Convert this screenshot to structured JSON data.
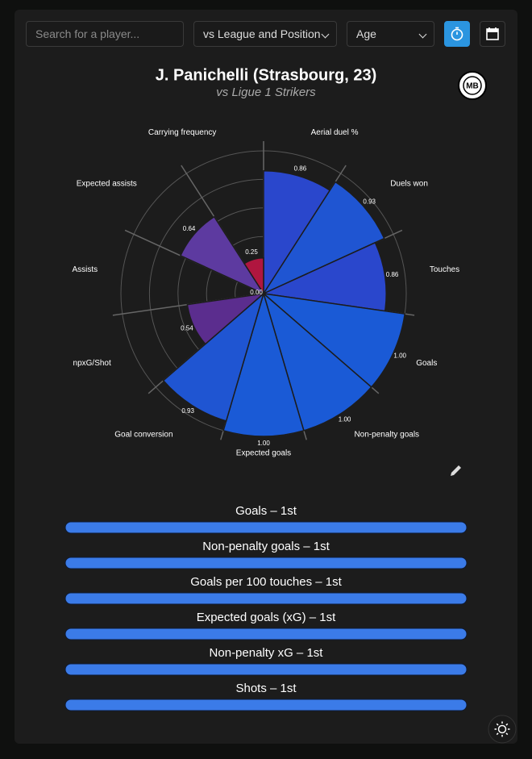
{
  "toolbar": {
    "search_placeholder": "Search for a player...",
    "comparison": "vs League and Position",
    "filter": "Age"
  },
  "header": {
    "title": "J. Panichelli (Strasbourg, 23)",
    "subtitle": "vs Ligue 1 Strikers",
    "logo": "MB"
  },
  "chart_data": {
    "type": "polar-bar",
    "categories": [
      "Aerial duel %",
      "Duels won",
      "Touches",
      "Goals",
      "Non-penalty goals",
      "Expected goals",
      "Goal conversion",
      "npxG/Shot",
      "Assists",
      "Expected assists",
      "Carrying frequency"
    ],
    "values": [
      0.86,
      0.93,
      0.86,
      1,
      1,
      1,
      0.93,
      0.54,
      0,
      0.64,
      0.25
    ],
    "value_labels": [
      "0.86",
      "0.93",
      "0.86",
      "1.00",
      "1.00",
      "1.00",
      "0.93",
      "0.54",
      "0.00",
      "0.64",
      "0.25"
    ],
    "colors": [
      "#2a47cc",
      "#1f55d2",
      "#2a47cc",
      "#1a5ad6",
      "#1a5ad6",
      "#1a5ad6",
      "#1f55d2",
      "#5b2d8e",
      "#333333",
      "#5d3aa0",
      "#b0163f"
    ],
    "rlim": [
      0,
      1
    ],
    "rticks": [
      0.2,
      0.4,
      0.6,
      0.8,
      1
    ],
    "grid": true
  },
  "rankings": {
    "xlim": [
      0,
      100
    ],
    "color": "#3b7be8",
    "items": [
      {
        "label": "Goals – 1st",
        "value": 100
      },
      {
        "label": "Non-penalty goals – 1st",
        "value": 100
      },
      {
        "label": "Goals per 100 touches – 1st",
        "value": 100
      },
      {
        "label": "Expected goals (xG) – 1st",
        "value": 100
      },
      {
        "label": "Non-penalty xG – 1st",
        "value": 100
      },
      {
        "label": "Shots – 1st",
        "value": 100
      }
    ]
  }
}
